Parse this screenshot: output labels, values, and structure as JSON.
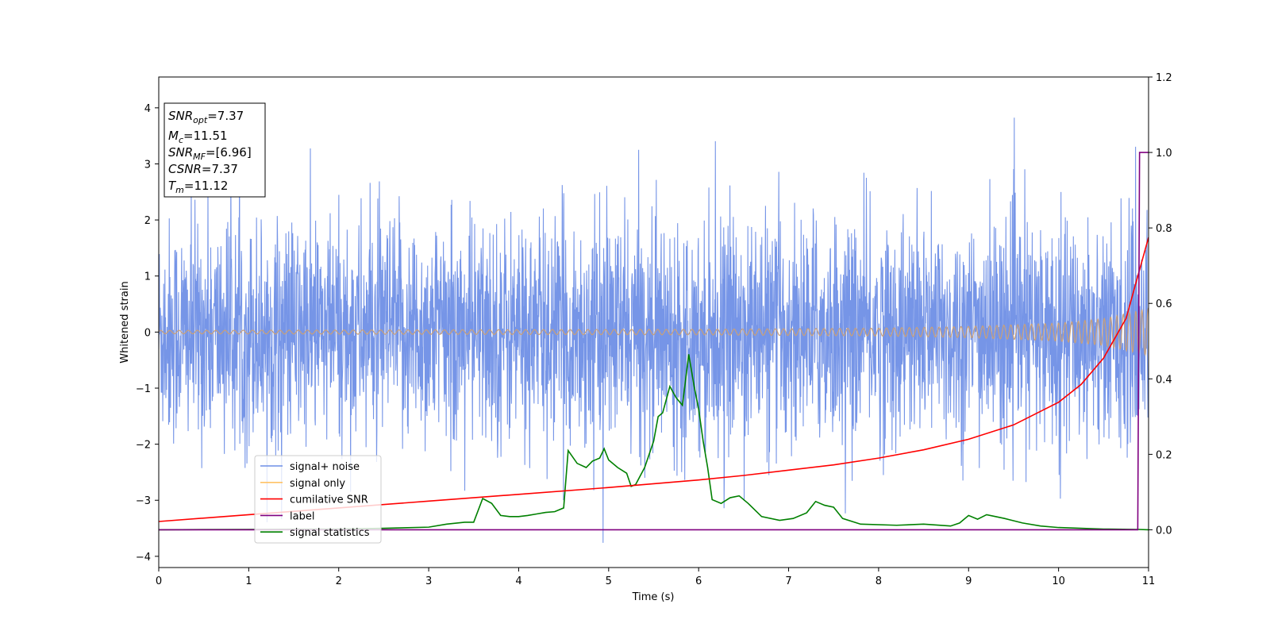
{
  "chart_data": {
    "type": "line",
    "xlabel": "Time (s)",
    "ylabel_left": "Whitened strain",
    "ylabel_right": "",
    "xlim": [
      0,
      11
    ],
    "ylim_left": [
      -4.2,
      4.55
    ],
    "ylim_right": [
      -0.1,
      1.2
    ],
    "x_ticks": [
      0,
      1,
      2,
      3,
      4,
      5,
      6,
      7,
      8,
      9,
      10,
      11
    ],
    "y_ticks_left": [
      -4,
      -3,
      -2,
      -1,
      0,
      1,
      2,
      3,
      4
    ],
    "y_ticks_right": [
      0.0,
      0.2,
      0.4,
      0.6,
      0.8,
      1.0,
      1.2
    ],
    "grid": false,
    "info_box": {
      "lines": [
        {
          "name": "SNR",
          "sub": "opt",
          "value": "=7.37"
        },
        {
          "name": "M",
          "sub": "c",
          "value": "=11.51"
        },
        {
          "name": "SNR",
          "sub": "MF",
          "value": "=[6.96]"
        },
        {
          "name": "CSNR",
          "sub": "",
          "value": "=7.37"
        },
        {
          "name": "T",
          "sub": "m",
          "value": "=11.12"
        }
      ]
    },
    "legend": {
      "position": "lower-left",
      "entries": [
        {
          "label": "signal+ noise",
          "color": "#6f8fe6"
        },
        {
          "label": "signal only",
          "color": "#ffc266"
        },
        {
          "label": "cumilative SNR",
          "color": "#ff0000"
        },
        {
          "label": "label",
          "color": "#800080"
        },
        {
          "label": "signal statistics",
          "color": "#008000"
        }
      ]
    },
    "series": [
      {
        "name": "signal+ noise",
        "axis": "left",
        "color": "#6f8fe6",
        "noise_band": {
          "typical_min": -2.3,
          "typical_max": 2.4,
          "extreme_min": -3.8,
          "extreme_max": 4.15
        }
      },
      {
        "name": "signal only",
        "axis": "left",
        "color": "#c9a07a",
        "envelope": {
          "x": [
            0,
            6,
            8,
            9,
            10,
            10.5,
            11
          ],
          "amplitude": [
            0.03,
            0.05,
            0.07,
            0.1,
            0.16,
            0.24,
            0.42
          ]
        }
      },
      {
        "name": "cumilative SNR",
        "axis": "right",
        "color": "#ff0000",
        "x": [
          0,
          1,
          2,
          3,
          4,
          5,
          6,
          6.5,
          7,
          7.5,
          8,
          8.5,
          9,
          9.5,
          10,
          10.25,
          10.5,
          10.75,
          11
        ],
        "y": [
          0.022,
          0.04,
          0.058,
          0.076,
          0.094,
          0.112,
          0.132,
          0.144,
          0.158,
          0.172,
          0.19,
          0.212,
          0.24,
          0.278,
          0.338,
          0.385,
          0.455,
          0.56,
          0.775
        ]
      },
      {
        "name": "label",
        "axis": "right",
        "color": "#800080",
        "x": [
          0,
          10.88,
          10.9,
          11
        ],
        "y": [
          0,
          0,
          1.0,
          1.0
        ]
      },
      {
        "name": "signal statistics",
        "axis": "right",
        "color": "#008000",
        "x": [
          0,
          1,
          2,
          2.5,
          3,
          3.2,
          3.4,
          3.5,
          3.6,
          3.7,
          3.8,
          3.9,
          4.0,
          4.1,
          4.2,
          4.3,
          4.4,
          4.5,
          4.55,
          4.65,
          4.75,
          4.82,
          4.9,
          4.95,
          5.0,
          5.1,
          5.2,
          5.25,
          5.3,
          5.4,
          5.5,
          5.55,
          5.6,
          5.68,
          5.75,
          5.82,
          5.89,
          5.95,
          6.0,
          6.05,
          6.1,
          6.15,
          6.25,
          6.35,
          6.45,
          6.55,
          6.7,
          6.9,
          7.05,
          7.2,
          7.3,
          7.4,
          7.5,
          7.6,
          7.8,
          8.2,
          8.5,
          8.8,
          8.9,
          9.0,
          9.1,
          9.2,
          9.3,
          9.4,
          9.6,
          9.8,
          10.0,
          10.5,
          10.88,
          11
        ],
        "y": [
          0.0,
          0.001,
          0.002,
          0.004,
          0.007,
          0.015,
          0.02,
          0.02,
          0.083,
          0.07,
          0.038,
          0.035,
          0.035,
          0.038,
          0.042,
          0.046,
          0.048,
          0.058,
          0.21,
          0.176,
          0.165,
          0.182,
          0.19,
          0.215,
          0.185,
          0.165,
          0.15,
          0.115,
          0.12,
          0.165,
          0.235,
          0.3,
          0.31,
          0.38,
          0.35,
          0.33,
          0.465,
          0.38,
          0.32,
          0.235,
          0.165,
          0.08,
          0.07,
          0.085,
          0.09,
          0.07,
          0.035,
          0.025,
          0.03,
          0.045,
          0.075,
          0.065,
          0.06,
          0.03,
          0.015,
          0.012,
          0.015,
          0.01,
          0.018,
          0.038,
          0.028,
          0.04,
          0.035,
          0.03,
          0.018,
          0.01,
          0.006,
          0.002,
          0.001,
          0.0
        ]
      }
    ]
  }
}
